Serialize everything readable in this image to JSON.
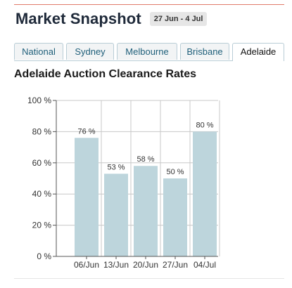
{
  "header": {
    "title": "Market Snapshot",
    "date_range": "27 Jun - 4 Jul"
  },
  "tabs": [
    {
      "label": "National",
      "active": false
    },
    {
      "label": "Sydney",
      "active": false
    },
    {
      "label": "Melbourne",
      "active": false
    },
    {
      "label": "Brisbane",
      "active": false
    },
    {
      "label": "Adelaide",
      "active": true
    }
  ],
  "chart_data": {
    "type": "bar",
    "title": "Adelaide Auction Clearance Rates",
    "categories": [
      "06/Jun",
      "13/Jun",
      "20/Jun",
      "27/Jun",
      "04/Jul"
    ],
    "values": [
      76,
      53,
      58,
      50,
      80
    ],
    "data_labels": [
      "76 %",
      "53 %",
      "58 %",
      "50 %",
      "80 %"
    ],
    "ylim": [
      0,
      100
    ],
    "yticks": [
      0,
      20,
      40,
      60,
      80,
      100
    ],
    "ytick_labels": [
      "0 %",
      "20 %",
      "40 %",
      "60 %",
      "80 %",
      "100 %"
    ],
    "xlabel": "",
    "ylabel": "",
    "grid": true,
    "colors": {
      "bar": "#bdd5dc",
      "grid": "#c8c8c8",
      "axis": "#555555",
      "text": "#333333"
    }
  }
}
